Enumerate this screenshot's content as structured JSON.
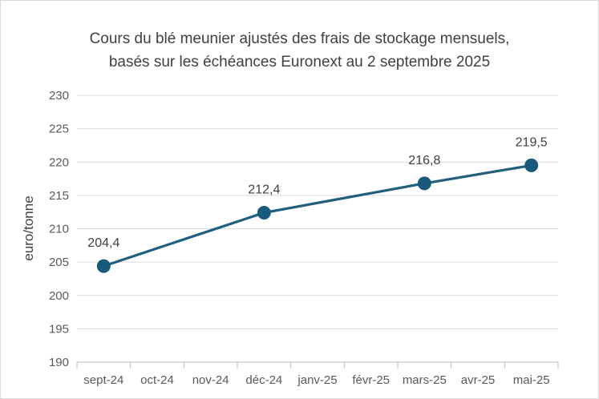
{
  "chart_data": {
    "type": "line",
    "title": "Cours du blé meunier ajustés des frais de stockage mensuels,",
    "subtitle": "basés sur les échéances Euronext au 2 septembre 2025",
    "xlabel": "",
    "ylabel": "euro/tonne",
    "categories": [
      "sept-24",
      "oct-24",
      "nov-24",
      "déc-24",
      "janv-25",
      "févr-25",
      "mars-25",
      "avr-25",
      "mai-25"
    ],
    "series": [
      {
        "points": [
          {
            "x": "sept-24",
            "y": 204.4,
            "label": "204,4"
          },
          {
            "x": "déc-24",
            "y": 212.4,
            "label": "212,4"
          },
          {
            "x": "mars-25",
            "y": 216.8,
            "label": "216,8"
          },
          {
            "x": "mai-25",
            "y": 219.5,
            "label": "219,5"
          }
        ]
      }
    ],
    "ylim": [
      190,
      230
    ],
    "yticks": [
      190,
      195,
      200,
      205,
      210,
      215,
      220,
      225,
      230
    ],
    "grid": true,
    "legend": "none",
    "colors": {
      "line": "#1F5F7F",
      "marker": "#175A7C",
      "grid": "#d9d9d9",
      "axis": "#bfbfbf"
    }
  }
}
